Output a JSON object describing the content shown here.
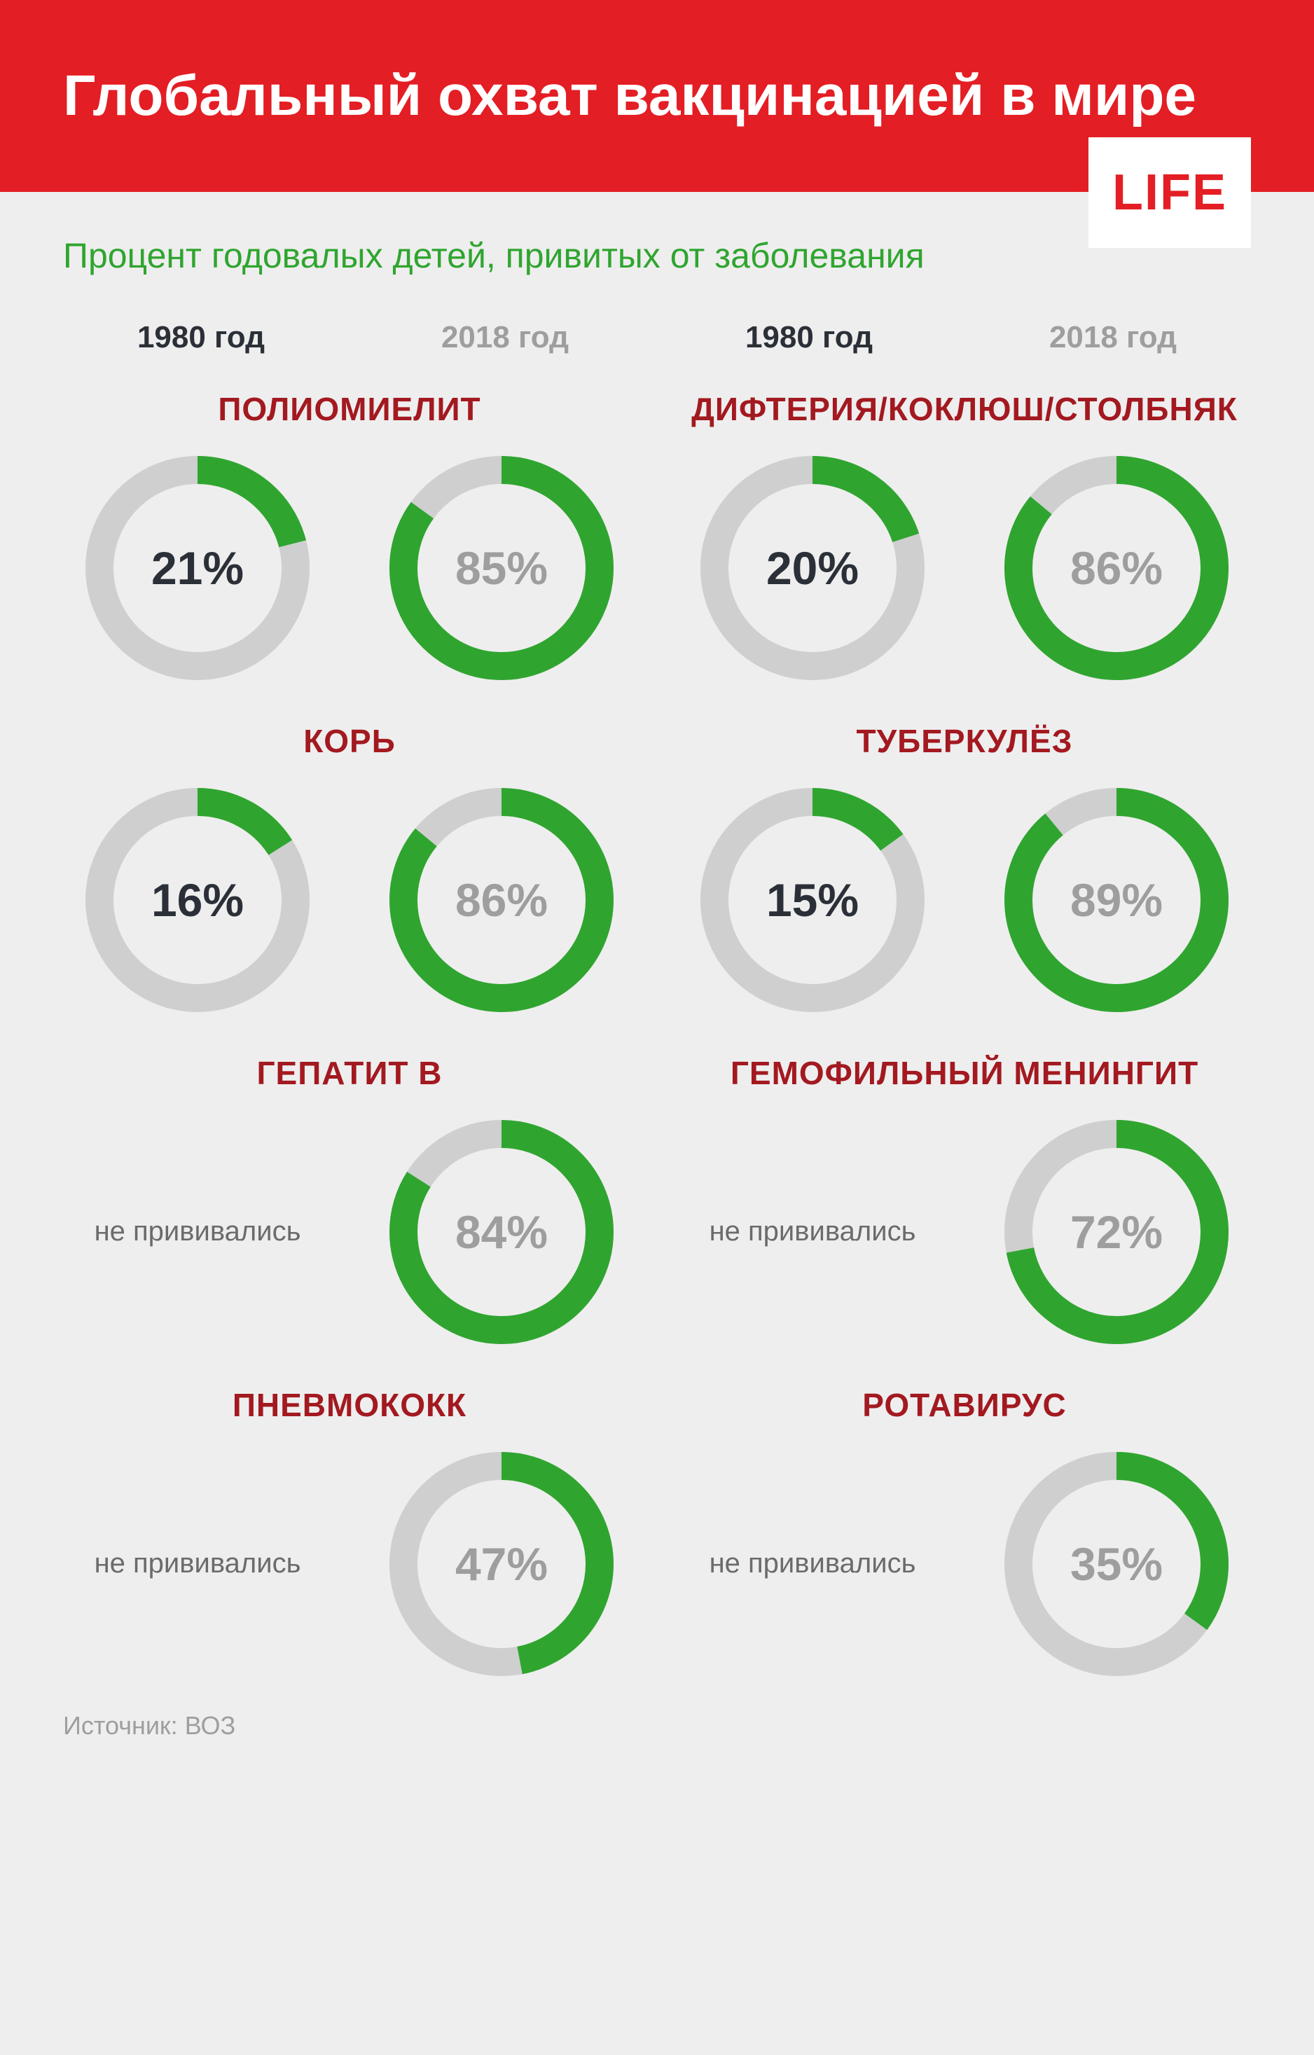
{
  "header": {
    "title": "Глобальный охват вакцинацией в мире",
    "badge": "LIFE",
    "bg_color": "#e31e24",
    "badge_bg": "#ffffff",
    "badge_text_color": "#e31e24"
  },
  "subtitle": "Процент годовалых детей, привитых от заболевания",
  "subtitle_color": "#2fa52f",
  "years": {
    "y1980": "1980 год",
    "y2018": "2018 год",
    "color_1980": "#2b3038",
    "color_2018": "#9e9e9e"
  },
  "no_vaccination_label": "не прививались",
  "donut_style": {
    "radius": 140,
    "stroke_width": 40,
    "track_color": "#cfcfcf",
    "progress_color": "#2fa52f",
    "size": 320
  },
  "diseases": [
    {
      "name": "ПОЛИОМИЕЛИТ",
      "y1980": 21,
      "y2018": 85
    },
    {
      "name": "ДИФТЕРИЯ/КОКЛЮШ/СТОЛБНЯК",
      "y1980": 20,
      "y2018": 86
    },
    {
      "name": "КОРЬ",
      "y1980": 16,
      "y2018": 86
    },
    {
      "name": "ТУБЕРКУЛЁЗ",
      "y1980": 15,
      "y2018": 89
    },
    {
      "name": "ГЕПАТИТ B",
      "y1980": null,
      "y2018": 84
    },
    {
      "name": "ГЕМОФИЛЬНЫЙ МЕНИНГИТ",
      "y1980": null,
      "y2018": 72
    },
    {
      "name": "ПНЕВМОКОКК",
      "y1980": null,
      "y2018": 47
    },
    {
      "name": "РОТАВИРУС",
      "y1980": null,
      "y2018": 35
    }
  ],
  "source": "Источник: ВОЗ",
  "page_bg": "#eeeeee",
  "disease_name_color": "#a31920",
  "label_colors": {
    "dark": "#2b3038",
    "gray": "#9e9e9e"
  },
  "no_vacc_color": "#6b6b6b"
}
